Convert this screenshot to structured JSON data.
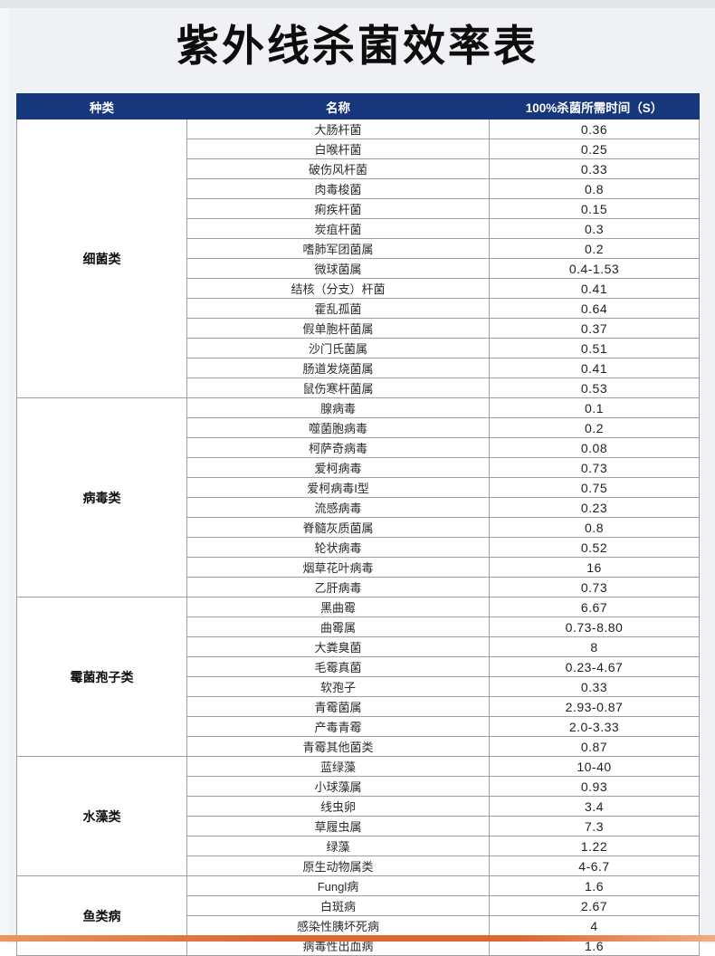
{
  "page": {
    "title": "紫外线杀菌效率表"
  },
  "table": {
    "columns": [
      "种类",
      "名称",
      "100%杀菌所需时间（S）"
    ],
    "sections": [
      {
        "category": "细菌类",
        "rows": [
          [
            "大肠杆菌",
            "0.36"
          ],
          [
            "白喉杆菌",
            "0.25"
          ],
          [
            "破伤风杆菌",
            "0.33"
          ],
          [
            "肉毒梭菌",
            "0.8"
          ],
          [
            "痢疾杆菌",
            "0.15"
          ],
          [
            "炭疽杆菌",
            "0.3"
          ],
          [
            "嗜肺军团菌属",
            "0.2"
          ],
          [
            "微球菌属",
            "0.4-1.53"
          ],
          [
            "结核（分支）杆菌",
            "0.41"
          ],
          [
            "霍乱孤菌",
            "0.64"
          ],
          [
            "假单胞杆菌属",
            "0.37"
          ],
          [
            "沙门氏菌属",
            "0.51"
          ],
          [
            "肠道发烧菌属",
            "0.41"
          ],
          [
            "鼠伤寒杆菌属",
            "0.53"
          ]
        ]
      },
      {
        "category": "病毒类",
        "rows": [
          [
            "腺病毒",
            "0.1"
          ],
          [
            "噬菌胞病毒",
            "0.2"
          ],
          [
            "柯萨奇病毒",
            "0.08"
          ],
          [
            "爱柯病毒",
            "0.73"
          ],
          [
            "爱柯病毒I型",
            "0.75"
          ],
          [
            "流感病毒",
            "0.23"
          ],
          [
            "脊髓灰质菌属",
            "0.8"
          ],
          [
            "轮状病毒",
            "0.52"
          ],
          [
            "烟草花叶病毒",
            "16"
          ],
          [
            "乙肝病毒",
            "0.73"
          ]
        ]
      },
      {
        "category": "霉菌孢子类",
        "rows": [
          [
            "黑曲霉",
            "6.67"
          ],
          [
            "曲霉属",
            "0.73-8.80"
          ],
          [
            "大粪臭菌",
            "8"
          ],
          [
            "毛霉真菌",
            "0.23-4.67"
          ],
          [
            "软孢子",
            "0.33"
          ],
          [
            "青霉菌属",
            "2.93-0.87"
          ],
          [
            "产毒青霉",
            "2.0-3.33"
          ],
          [
            "青霉其他菌类",
            "0.87"
          ]
        ]
      },
      {
        "category": "水藻类",
        "rows": [
          [
            "蓝绿藻",
            "10-40"
          ],
          [
            "小球藻属",
            "0.93"
          ],
          [
            "线虫卵",
            "3.4"
          ],
          [
            "草履虫属",
            "7.3"
          ],
          [
            "绿藻",
            "1.22"
          ],
          [
            "原生动物属类",
            "4-6.7"
          ]
        ]
      },
      {
        "category": "鱼类病",
        "rows": [
          [
            "Fungl病",
            "1.6"
          ],
          [
            "白斑病",
            "2.67"
          ],
          [
            "感染性胰坏死病",
            "4"
          ],
          [
            "病毒性出血病",
            "1.6"
          ]
        ]
      }
    ]
  },
  "colors": {
    "page_bg": "#eff1f5",
    "top_strip": "#e4e6ea",
    "left_strip": "#f6f7f9",
    "header_bg": "#17377d",
    "bar_c1": "#e8965f",
    "bar_c2": "#dc6530",
    "bar_c3": "#f0ad84"
  }
}
